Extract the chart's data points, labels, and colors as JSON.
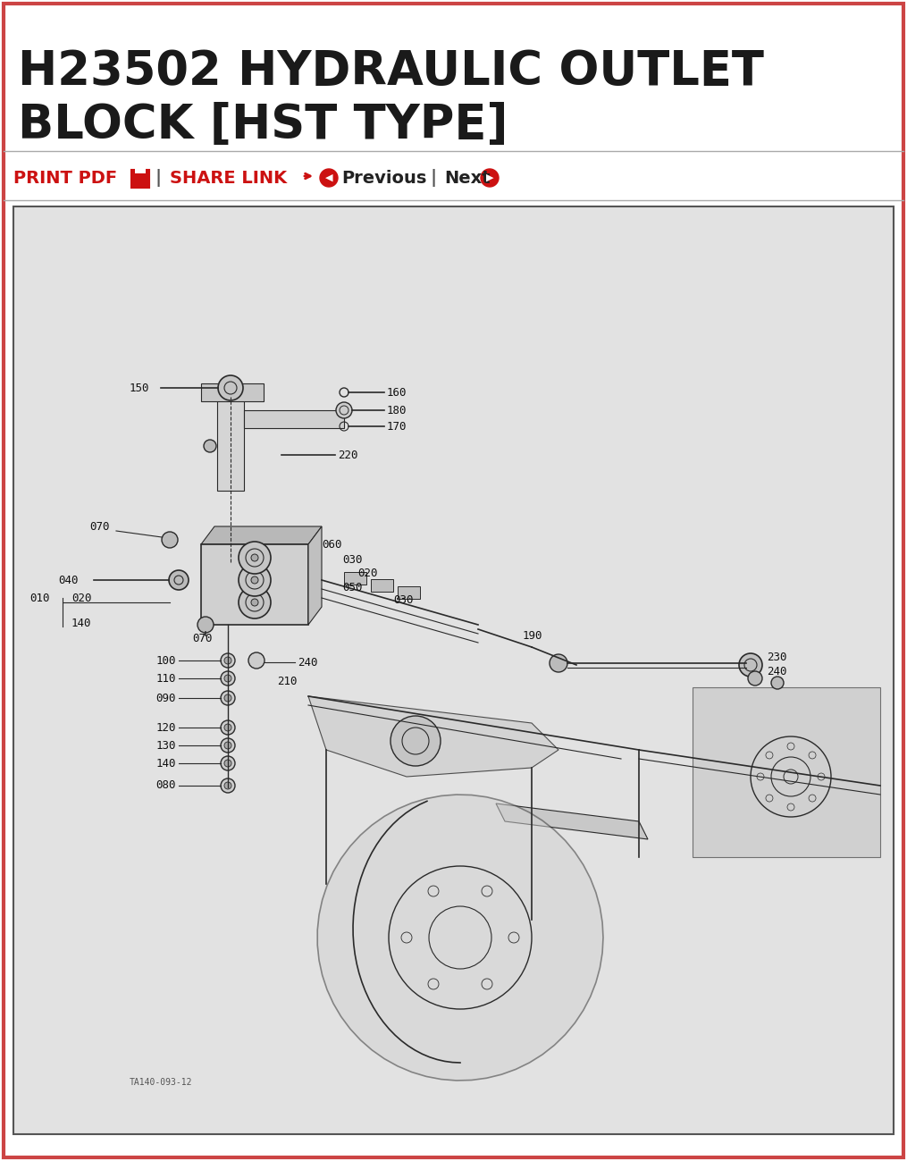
{
  "title_line1": "H23502 HYDRAULIC OUTLET",
  "title_line2": "BLOCK [HST TYPE]",
  "title_color": "#1a1a1a",
  "title_fontsize": 38,
  "toolbar_color": "#cc1111",
  "outer_border_color": "#cc4444",
  "diagram_border_color": "#555555",
  "diagram_bg": "#e2e2e2",
  "page_bg": "#ffffff",
  "watermark": "TA140-093-12",
  "parts_stack": [
    [
      530,
      "100"
    ],
    [
      510,
      "110"
    ],
    [
      488,
      "090"
    ],
    [
      455,
      "120"
    ],
    [
      435,
      "130"
    ],
    [
      415,
      "140"
    ],
    [
      390,
      "080"
    ]
  ]
}
